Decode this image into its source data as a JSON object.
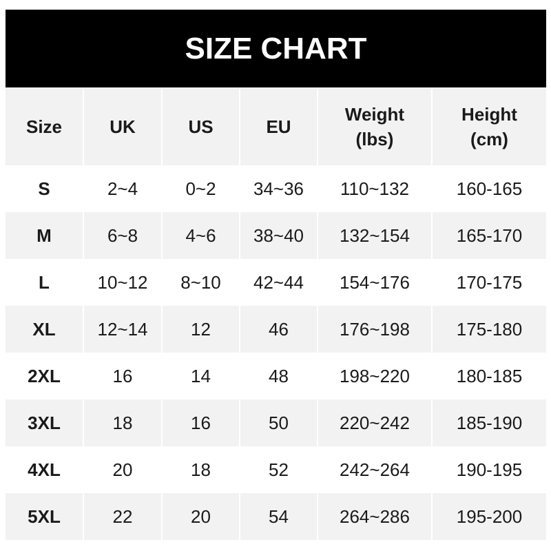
{
  "title": "SIZE CHART",
  "colors": {
    "header_bg": "#000000",
    "header_text": "#ffffff",
    "stripe": "#f2f2f2"
  },
  "columns": [
    "Size",
    "UK",
    "US",
    "EU",
    "Weight\n(lbs)",
    "Height\n(cm)"
  ],
  "rows": [
    [
      "S",
      "2~4",
      "0~2",
      "34~36",
      "110~132",
      "160-165"
    ],
    [
      "M",
      "6~8",
      "4~6",
      "38~40",
      "132~154",
      "165-170"
    ],
    [
      "L",
      "10~12",
      "8~10",
      "42~44",
      "154~176",
      "170-175"
    ],
    [
      "XL",
      "12~14",
      "12",
      "46",
      "176~198",
      "175-180"
    ],
    [
      "2XL",
      "16",
      "14",
      "48",
      "198~220",
      "180-185"
    ],
    [
      "3XL",
      "18",
      "16",
      "50",
      "220~242",
      "185-190"
    ],
    [
      "4XL",
      "20",
      "18",
      "52",
      "242~264",
      "190-195"
    ],
    [
      "5XL",
      "22",
      "20",
      "54",
      "264~286",
      "195-200"
    ]
  ]
}
